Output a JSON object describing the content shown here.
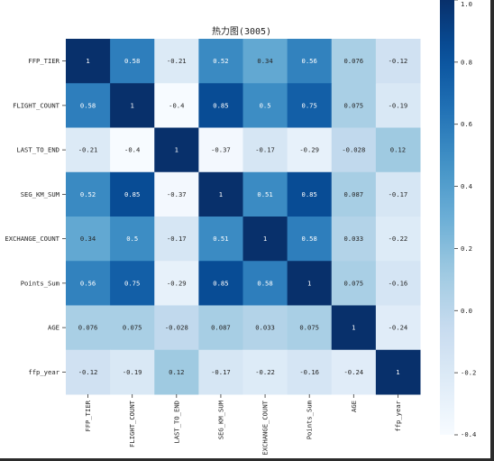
{
  "chart_data": {
    "type": "heatmap",
    "title": "热力图(3005)",
    "labels": [
      "FFP_TIER",
      "FLIGHT_COUNT",
      "LAST_TO_END",
      "SEG_KM_SUM",
      "EXCHANGE_COUNT",
      "Points_Sum",
      "AGE",
      "ffp_year"
    ],
    "matrix": [
      [
        1,
        0.58,
        -0.21,
        0.52,
        0.34,
        0.56,
        0.076,
        -0.12
      ],
      [
        0.58,
        1,
        -0.4,
        0.85,
        0.5,
        0.75,
        0.075,
        -0.19
      ],
      [
        -0.21,
        -0.4,
        1,
        -0.37,
        -0.17,
        -0.29,
        -0.028,
        0.12
      ],
      [
        0.52,
        0.85,
        -0.37,
        1,
        0.51,
        0.85,
        0.087,
        -0.17
      ],
      [
        0.34,
        0.5,
        -0.17,
        0.51,
        1,
        0.58,
        0.033,
        -0.22
      ],
      [
        0.56,
        0.75,
        -0.29,
        0.85,
        0.58,
        1,
        0.075,
        -0.16
      ],
      [
        0.076,
        0.075,
        -0.028,
        0.087,
        0.033,
        0.075,
        1,
        -0.24
      ],
      [
        -0.12,
        -0.19,
        0.12,
        -0.17,
        -0.22,
        -0.16,
        -0.24,
        1
      ]
    ],
    "annotation_text": [
      [
        "1",
        "0.58",
        "-0.21",
        "0.52",
        "0.34",
        "0.56",
        "0.076",
        "-0.12"
      ],
      [
        "0.58",
        "1",
        "-0.4",
        "0.85",
        "0.5",
        "0.75",
        "0.075",
        "-0.19"
      ],
      [
        "-0.21",
        "-0.4",
        "1",
        "-0.37",
        "-0.17",
        "-0.29",
        "-0.028",
        "0.12"
      ],
      [
        "0.52",
        "0.85",
        "-0.37",
        "1",
        "0.51",
        "0.85",
        "0.087",
        "-0.17"
      ],
      [
        "0.34",
        "0.5",
        "-0.17",
        "0.51",
        "1",
        "0.58",
        "0.033",
        "-0.22"
      ],
      [
        "0.56",
        "0.75",
        "-0.29",
        "0.85",
        "0.58",
        "1",
        "0.075",
        "-0.16"
      ],
      [
        "0.076",
        "0.075",
        "-0.028",
        "0.087",
        "0.033",
        "0.075",
        "1",
        "-0.24"
      ],
      [
        "-0.12",
        "-0.19",
        "0.12",
        "-0.17",
        "-0.22",
        "-0.16",
        "-0.24",
        "1"
      ]
    ],
    "colorbar": {
      "range": [
        -0.4,
        1.0
      ],
      "ticks": [
        1.0,
        0.8,
        0.6,
        0.4,
        0.2,
        0.0,
        -0.2,
        -0.4
      ],
      "tick_labels": [
        "1.0",
        "0.8",
        "0.6",
        "0.4",
        "0.2",
        "0.0",
        "-0.2",
        "-0.4"
      ]
    },
    "colormap": "Blues",
    "grid": false
  }
}
